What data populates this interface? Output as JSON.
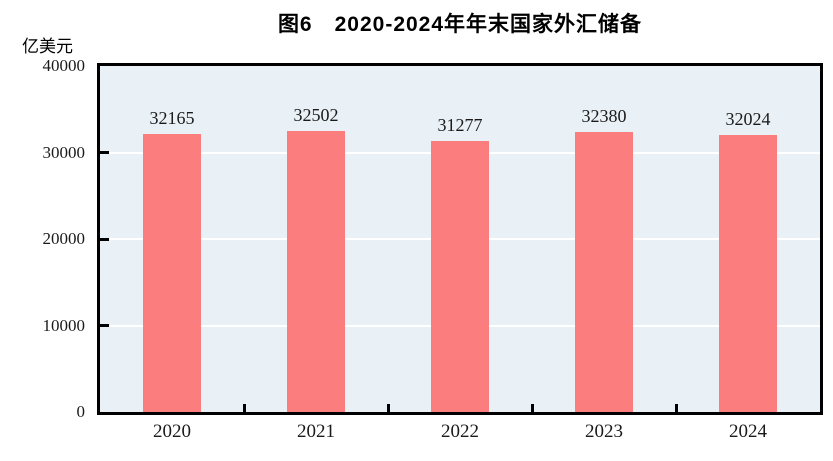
{
  "figure": {
    "title": "图6　2020-2024年年末国家外汇储备",
    "unit_label": "亿美元"
  },
  "chart_data": {
    "type": "bar",
    "title": "图6　2020-2024年年末国家外汇储备",
    "xlabel": "",
    "ylabel": "亿美元",
    "categories": [
      "2020",
      "2021",
      "2022",
      "2023",
      "2024"
    ],
    "values": [
      32165,
      32502,
      31277,
      32380,
      32024
    ],
    "data_labels_visible": true,
    "ylim": [
      0,
      40000
    ],
    "yticks": [
      0,
      10000,
      20000,
      30000,
      40000
    ],
    "grid": "horizontal",
    "legend": "none",
    "colors": {
      "bar": "#FC7D7D",
      "plot_background": "#EAF1F6",
      "gridline": "#FFFFFF",
      "axis_border": "#000000",
      "text": "#000000"
    }
  }
}
